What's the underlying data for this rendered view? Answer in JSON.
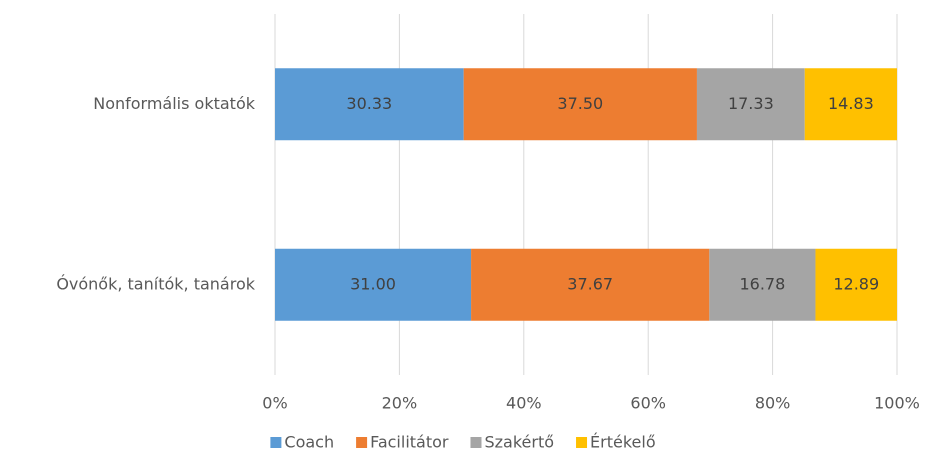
{
  "chart_data": {
    "type": "bar",
    "orientation": "horizontal",
    "stacked": "percent",
    "categories": [
      "Nonformális oktatók",
      "Óvónők, tanítók, tanárok"
    ],
    "series": [
      {
        "name": "Coach",
        "color": "#5b9bd5",
        "values": [
          30.33,
          31.0
        ],
        "value_labels": [
          "30.33",
          "31.00"
        ]
      },
      {
        "name": "Facilitátor",
        "color": "#ed7d31",
        "values": [
          37.5,
          37.67
        ],
        "value_labels": [
          "37.50",
          "37.67"
        ]
      },
      {
        "name": "Szakértő",
        "color": "#a5a5a5",
        "values": [
          17.33,
          16.78
        ],
        "value_labels": [
          "17.33",
          "16.78"
        ]
      },
      {
        "name": "Értékelő",
        "color": "#ffc000",
        "values": [
          14.83,
          12.89
        ],
        "value_labels": [
          "14.83",
          "12.89"
        ]
      }
    ],
    "xlim": [
      0,
      100
    ],
    "xticks": [
      {
        "value": 0,
        "label": "0%"
      },
      {
        "value": 20,
        "label": "20%"
      },
      {
        "value": 40,
        "label": "40%"
      },
      {
        "value": 60,
        "label": "60%"
      },
      {
        "value": 80,
        "label": "80%"
      },
      {
        "value": 100,
        "label": "100%"
      }
    ],
    "grid": true,
    "legend": "bottom"
  }
}
